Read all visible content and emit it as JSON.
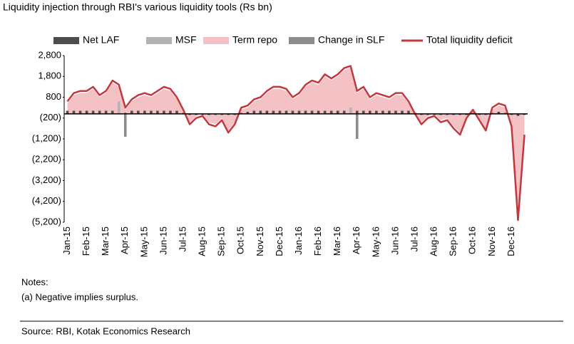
{
  "chart_data": {
    "type": "combo",
    "title": "Liquidity injection through RBI's various liquidity tools (Rs bn)",
    "categories": [
      "Jan-15",
      null,
      null,
      "Feb-15",
      null,
      null,
      "Mar-15",
      null,
      null,
      "Apr-15",
      null,
      null,
      "May-15",
      null,
      null,
      "Jun-15",
      null,
      null,
      "Jul-15",
      null,
      null,
      "Aug-15",
      null,
      null,
      "Sep-15",
      null,
      null,
      "Oct-15",
      null,
      null,
      "Nov-15",
      null,
      null,
      "Dec-15",
      null,
      null,
      "Jan-16",
      null,
      null,
      "Feb-16",
      null,
      null,
      "Mar-16",
      null,
      null,
      "Apr-16",
      null,
      null,
      "May-16",
      null,
      null,
      "Jun-16",
      null,
      null,
      "Jul-16",
      null,
      null,
      "Aug-16",
      null,
      null,
      "Sep-16",
      null,
      null,
      "Oct-16",
      null,
      null,
      "Nov-16",
      null,
      null,
      "Dec-16",
      null,
      null
    ],
    "series": [
      {
        "name": "Net LAF",
        "kind": "bar",
        "color": "#4d4d4d",
        "values": [
          150,
          150,
          150,
          150,
          150,
          150,
          150,
          150,
          150,
          50,
          150,
          150,
          150,
          150,
          150,
          150,
          150,
          150,
          50,
          -50,
          -50,
          -50,
          -50,
          -50,
          -50,
          -50,
          -50,
          50,
          100,
          150,
          150,
          150,
          150,
          150,
          150,
          150,
          150,
          150,
          150,
          150,
          150,
          150,
          150,
          150,
          150,
          150,
          150,
          150,
          150,
          150,
          150,
          150,
          150,
          150,
          50,
          -50,
          -50,
          -50,
          -50,
          -50,
          -50,
          -50,
          -50,
          50,
          -50,
          -50,
          50,
          100,
          50,
          -50,
          -100,
          -50
        ]
      },
      {
        "name": "MSF",
        "kind": "bar",
        "color": "#b3b3b3",
        "values": [
          0,
          0,
          0,
          0,
          0,
          0,
          0,
          0,
          600,
          0,
          0,
          0,
          0,
          0,
          0,
          0,
          0,
          0,
          0,
          0,
          0,
          0,
          0,
          0,
          0,
          0,
          0,
          0,
          0,
          0,
          0,
          0,
          0,
          0,
          0,
          0,
          0,
          0,
          0,
          0,
          0,
          0,
          0,
          0,
          300,
          0,
          0,
          0,
          0,
          0,
          0,
          0,
          0,
          0,
          0,
          0,
          0,
          0,
          0,
          0,
          0,
          0,
          0,
          0,
          0,
          0,
          0,
          0,
          0,
          0,
          0,
          0
        ]
      },
      {
        "name": "Term repo",
        "kind": "area",
        "color": "#f4c2c5",
        "values": [
          500,
          900,
          1000,
          1000,
          1200,
          800,
          1000,
          1500,
          1300,
          200,
          600,
          800,
          900,
          800,
          1000,
          1200,
          1100,
          700,
          100,
          -400,
          -100,
          0,
          -400,
          -500,
          -200,
          -800,
          -400,
          200,
          300,
          600,
          700,
          1000,
          1200,
          1200,
          1100,
          700,
          900,
          1300,
          1500,
          1400,
          1800,
          1600,
          1800,
          2100,
          2200,
          1000,
          1200,
          700,
          900,
          800,
          700,
          900,
          900,
          500,
          0,
          -400,
          -100,
          0,
          -300,
          -200,
          -600,
          -900,
          -100,
          100,
          -200,
          -700,
          200,
          400,
          300,
          -500,
          -5000,
          -900
        ]
      },
      {
        "name": "Change in SLF",
        "kind": "bar",
        "color": "#8c8c8c",
        "values": [
          0,
          0,
          0,
          0,
          0,
          0,
          0,
          0,
          0,
          -1100,
          0,
          0,
          0,
          0,
          0,
          0,
          0,
          0,
          0,
          0,
          0,
          0,
          0,
          0,
          0,
          0,
          0,
          0,
          0,
          0,
          0,
          0,
          0,
          0,
          0,
          0,
          0,
          0,
          0,
          0,
          0,
          0,
          0,
          0,
          0,
          -1200,
          0,
          0,
          0,
          0,
          0,
          0,
          0,
          0,
          0,
          0,
          0,
          0,
          0,
          0,
          0,
          0,
          0,
          0,
          0,
          0,
          0,
          0,
          0,
          0,
          0,
          0
        ]
      },
      {
        "name": "Total liquidity deficit",
        "kind": "line",
        "color": "#c0393f",
        "values": [
          600,
          1000,
          1100,
          1100,
          1300,
          900,
          1100,
          1600,
          1400,
          300,
          700,
          900,
          1000,
          900,
          1100,
          1300,
          1200,
          800,
          200,
          -500,
          -200,
          -100,
          -500,
          -600,
          -300,
          -900,
          -500,
          300,
          400,
          700,
          800,
          1100,
          1300,
          1300,
          1200,
          800,
          1000,
          1400,
          1600,
          1500,
          1900,
          1700,
          1900,
          2200,
          2300,
          1100,
          1300,
          800,
          1000,
          900,
          800,
          1000,
          1000,
          600,
          0,
          -500,
          -200,
          -100,
          -400,
          -300,
          -700,
          -1000,
          -200,
          200,
          -300,
          -800,
          300,
          500,
          400,
          -600,
          -5100,
          -1000
        ]
      }
    ],
    "ylim": [
      -5200,
      2800
    ],
    "yticks": [
      {
        "value": 2800,
        "label": "2,800"
      },
      {
        "value": 1800,
        "label": "1,800"
      },
      800,
      {
        "value": -200,
        "label": "(200)"
      },
      {
        "value": -1200,
        "label": "(1,200)"
      },
      {
        "value": -2200,
        "label": "(2,200)"
      },
      {
        "value": -3200,
        "label": "(3,200)"
      },
      {
        "value": -4200,
        "label": "(4,200)"
      },
      {
        "value": -5200,
        "label": "(5,200)"
      }
    ],
    "notes": [
      "Notes:",
      "(a) Negative implies surplus."
    ],
    "source": "Source: RBI, Kotak Economics Research"
  }
}
